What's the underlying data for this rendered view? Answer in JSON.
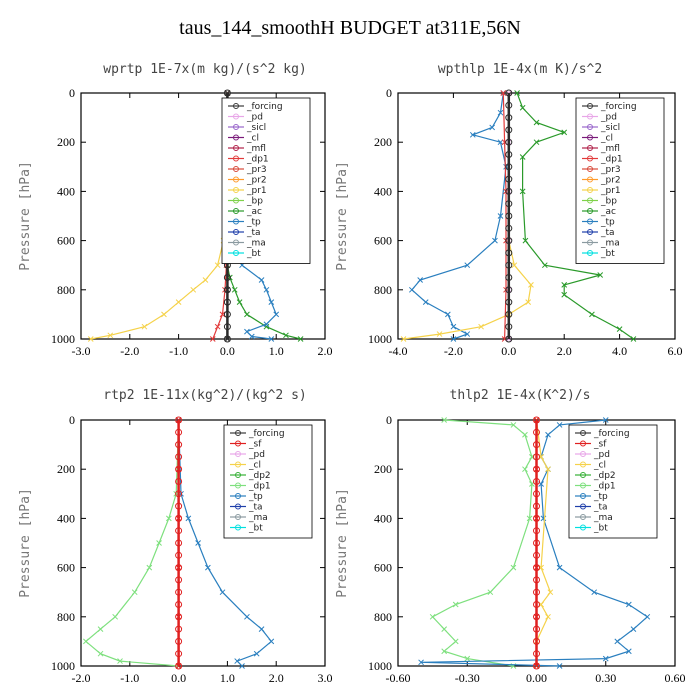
{
  "title": "taus_144_smoothH  BUDGET at311E,56N",
  "colors": {
    "forcing": "#3a3a3a",
    "pd": "#e8a6e8",
    "sicl": "#9966cc",
    "cl": "#7a1a7a",
    "mfl": "#b0214a",
    "dp1": "#e23a3a",
    "pr3": "#d84a3a",
    "pr2": "#ff9a2a",
    "pr1": "#f5d24a",
    "bp": "#7fd24a",
    "ac": "#2a9a2a",
    "tp": "#2a7fbf",
    "ta": "#1f3faa",
    "ma": "#8a9aa0",
    "bt": "#00e0e0",
    "sf": "#e02020",
    "dp2": "#35b035",
    "dp1g": "#7ee07e"
  },
  "chart_data": [
    {
      "type": "line",
      "title": "wprtp  1E-7x(m kg)/(s^2 kg)",
      "ylabel": "Pressure [hPa]",
      "xlim": [
        -3.0,
        2.0
      ],
      "ylim": [
        1000,
        0
      ],
      "xticks": [
        "-3.0",
        "-2.0",
        "-1.0",
        "0.0",
        "1.0",
        "2.0"
      ],
      "yticks": [
        "0",
        "200",
        "400",
        "600",
        "800",
        "1000"
      ],
      "legend": [
        "_forcing",
        "_pd",
        "_sicl",
        "_cl",
        "_mfl",
        "_dp1",
        "_pr3",
        "_pr2",
        "_pr1",
        "_bp",
        "_ac",
        "_tp",
        "_ta",
        "_ma",
        "_bt"
      ],
      "legend_colors": [
        "forcing",
        "pd",
        "sicl",
        "cl",
        "mfl",
        "dp1",
        "pr3",
        "pr2",
        "pr1",
        "bp",
        "ac",
        "tp",
        "ta",
        "ma",
        "bt"
      ],
      "series": [
        {
          "name": "_pr1",
          "color": "pr1",
          "p": [
            0,
            400,
            600,
            700,
            760,
            800,
            850,
            900,
            950,
            985,
            1000
          ],
          "x": [
            0.0,
            -0.02,
            -0.08,
            -0.2,
            -0.45,
            -0.7,
            -1.0,
            -1.3,
            -1.7,
            -2.4,
            -2.8
          ]
        },
        {
          "name": "_ac",
          "color": "ac",
          "p": [
            0,
            600,
            700,
            750,
            800,
            850,
            900,
            950,
            985,
            1000
          ],
          "x": [
            0.0,
            0.0,
            0.0,
            0.05,
            0.15,
            0.25,
            0.4,
            0.8,
            1.2,
            1.5
          ]
        },
        {
          "name": "_tp",
          "color": "tp",
          "p": [
            0,
            500,
            600,
            700,
            760,
            800,
            850,
            900,
            940,
            970,
            990,
            1000
          ],
          "x": [
            0.0,
            0.02,
            0.1,
            0.3,
            0.7,
            0.8,
            0.9,
            1.0,
            0.8,
            0.4,
            0.5,
            0.9
          ]
        },
        {
          "name": "_dp1",
          "color": "dp1",
          "p": [
            0,
            700,
            800,
            900,
            950,
            1000
          ],
          "x": [
            0.0,
            -0.02,
            -0.05,
            -0.1,
            -0.2,
            -0.3
          ]
        },
        {
          "name": "_forcing",
          "color": "forcing",
          "p": [
            0,
            200,
            400,
            600,
            800,
            1000
          ],
          "x": [
            0.0,
            0.0,
            0.0,
            0.0,
            0.0,
            0.0
          ]
        }
      ]
    },
    {
      "type": "line",
      "title": "wpthlp  1E-4x(m K)/s^2",
      "ylabel": "Pressure [hPa]",
      "xlim": [
        -4.0,
        6.0
      ],
      "ylim": [
        1000,
        0
      ],
      "xticks": [
        "-4.0",
        "-2.0",
        "0.0",
        "2.0",
        "4.0",
        "6.0"
      ],
      "yticks": [
        "0",
        "200",
        "400",
        "600",
        "800",
        "1000"
      ],
      "legend": [
        "_forcing",
        "_pd",
        "_sicl",
        "_cl",
        "_mfl",
        "_dp1",
        "_pr3",
        "_pr2",
        "_pr1",
        "_bp",
        "_ac",
        "_tp",
        "_ta",
        "_ma",
        "_bt"
      ],
      "legend_colors": [
        "forcing",
        "pd",
        "sicl",
        "cl",
        "mfl",
        "dp1",
        "pr3",
        "pr2",
        "pr1",
        "bp",
        "ac",
        "tp",
        "ta",
        "ma",
        "bt"
      ],
      "series": [
        {
          "name": "_ac",
          "color": "ac",
          "p": [
            0,
            60,
            120,
            160,
            200,
            260,
            400,
            600,
            700,
            740,
            780,
            820,
            900,
            960,
            1000
          ],
          "x": [
            0.3,
            0.5,
            1.0,
            2.0,
            1.0,
            0.5,
            0.5,
            0.6,
            1.3,
            3.3,
            2.0,
            2.0,
            3.0,
            4.0,
            4.5
          ]
        },
        {
          "name": "_tp",
          "color": "tp",
          "p": [
            0,
            80,
            140,
            170,
            200,
            300,
            500,
            600,
            700,
            760,
            800,
            850,
            900,
            950,
            980,
            1000
          ],
          "x": [
            -0.2,
            -0.3,
            -0.6,
            -1.3,
            -0.3,
            -0.1,
            -0.3,
            -0.5,
            -1.5,
            -3.2,
            -3.5,
            -3.0,
            -2.2,
            -2.0,
            -1.5,
            -2.0
          ]
        },
        {
          "name": "_pr1",
          "color": "pr1",
          "p": [
            0,
            600,
            700,
            780,
            850,
            900,
            950,
            980,
            1000
          ],
          "x": [
            0.0,
            0.0,
            0.2,
            0.8,
            0.7,
            0.0,
            -1.0,
            -2.5,
            -3.8
          ]
        },
        {
          "name": "_dp1",
          "color": "dp1",
          "p": [
            0,
            200,
            400,
            600,
            800,
            1000
          ],
          "x": [
            -0.2,
            -0.15,
            -0.1,
            -0.1,
            -0.1,
            -0.15
          ]
        },
        {
          "name": "_pd",
          "color": "pd",
          "p": [
            0,
            200,
            400,
            600,
            800,
            1000
          ],
          "x": [
            0.0,
            0.0,
            0.0,
            0.0,
            0.0,
            0.0
          ]
        }
      ]
    },
    {
      "type": "line",
      "title": "rtp2  1E-11x(kg^2)/(kg^2 s)",
      "ylabel": "Pressure [hPa]",
      "xlim": [
        -2.0,
        3.0
      ],
      "ylim": [
        1000,
        0
      ],
      "xticks": [
        "-2.0",
        "-1.0",
        "0.0",
        "1.0",
        "2.0",
        "3.0"
      ],
      "yticks": [
        "0",
        "200",
        "400",
        "600",
        "800",
        "1000"
      ],
      "legend": [
        "_forcing",
        "_sf",
        "_pd",
        "_cl",
        "_dp2",
        "_dp1",
        "_tp",
        "_ta",
        "_ma",
        "_bt"
      ],
      "legend_colors": [
        "forcing",
        "sf",
        "pd",
        "pr1",
        "dp2",
        "dp1g",
        "tp",
        "ta",
        "ma",
        "bt"
      ],
      "series": [
        {
          "name": "_dp1",
          "color": "dp1g",
          "p": [
            0,
            300,
            400,
            500,
            600,
            700,
            800,
            850,
            900,
            950,
            980,
            1000
          ],
          "x": [
            0.0,
            -0.05,
            -0.2,
            -0.4,
            -0.6,
            -0.9,
            -1.3,
            -1.6,
            -1.9,
            -1.6,
            -1.2,
            0.0
          ]
        },
        {
          "name": "_tp",
          "color": "tp",
          "p": [
            0,
            300,
            400,
            500,
            600,
            700,
            800,
            850,
            900,
            950,
            980,
            1000
          ],
          "x": [
            0.0,
            0.05,
            0.2,
            0.4,
            0.6,
            0.9,
            1.4,
            1.7,
            1.9,
            1.6,
            1.2,
            1.3
          ]
        },
        {
          "name": "_forcing",
          "color": "sf",
          "p": [
            0,
            200,
            400,
            600,
            800,
            1000
          ],
          "x": [
            0.0,
            0.0,
            0.0,
            0.0,
            0.0,
            0.0
          ]
        }
      ]
    },
    {
      "type": "line",
      "title": "thlp2  1E-4x(K^2)/s",
      "ylabel": "Pressure [hPa]",
      "xlim": [
        -0.6,
        0.6
      ],
      "ylim": [
        1000,
        0
      ],
      "xticks": [
        "-0.60",
        "-0.30",
        "0.00",
        "0.30",
        "0.60"
      ],
      "yticks": [
        "0",
        "200",
        "400",
        "600",
        "800",
        "1000"
      ],
      "legend": [
        "_forcing",
        "_sf",
        "_pd",
        "_cl",
        "_dp2",
        "_dp1",
        "_tp",
        "_ta",
        "_ma",
        "_bt"
      ],
      "legend_colors": [
        "forcing",
        "sf",
        "pd",
        "pr1",
        "dp2",
        "dp1g",
        "tp",
        "ta",
        "ma",
        "bt"
      ],
      "series": [
        {
          "name": "_dp1",
          "color": "dp1g",
          "p": [
            0,
            20,
            60,
            150,
            200,
            260,
            400,
            600,
            700,
            750,
            800,
            850,
            900,
            940,
            970,
            1000
          ],
          "x": [
            -0.4,
            -0.1,
            -0.05,
            -0.02,
            -0.05,
            -0.02,
            -0.03,
            -0.1,
            -0.2,
            -0.35,
            -0.45,
            -0.4,
            -0.35,
            -0.4,
            -0.3,
            -0.1
          ]
        },
        {
          "name": "_tp",
          "color": "tp",
          "p": [
            0,
            20,
            60,
            150,
            200,
            260,
            400,
            600,
            700,
            750,
            800,
            850,
            900,
            940,
            970,
            985,
            1000
          ],
          "x": [
            0.3,
            0.1,
            0.05,
            0.02,
            0.05,
            0.02,
            0.03,
            0.1,
            0.25,
            0.4,
            0.48,
            0.42,
            0.35,
            0.4,
            0.3,
            -0.5,
            0.1
          ]
        },
        {
          "name": "_cl",
          "color": "pr1",
          "p": [
            0,
            150,
            200,
            600,
            700,
            750,
            800,
            900,
            1000
          ],
          "x": [
            0.0,
            0.02,
            0.05,
            0.02,
            0.06,
            0.02,
            0.05,
            0.0,
            0.0
          ]
        },
        {
          "name": "_forcing",
          "color": "sf",
          "p": [
            0,
            200,
            400,
            600,
            800,
            1000
          ],
          "x": [
            0.0,
            0.0,
            0.0,
            0.0,
            0.0,
            0.0
          ]
        }
      ]
    }
  ]
}
